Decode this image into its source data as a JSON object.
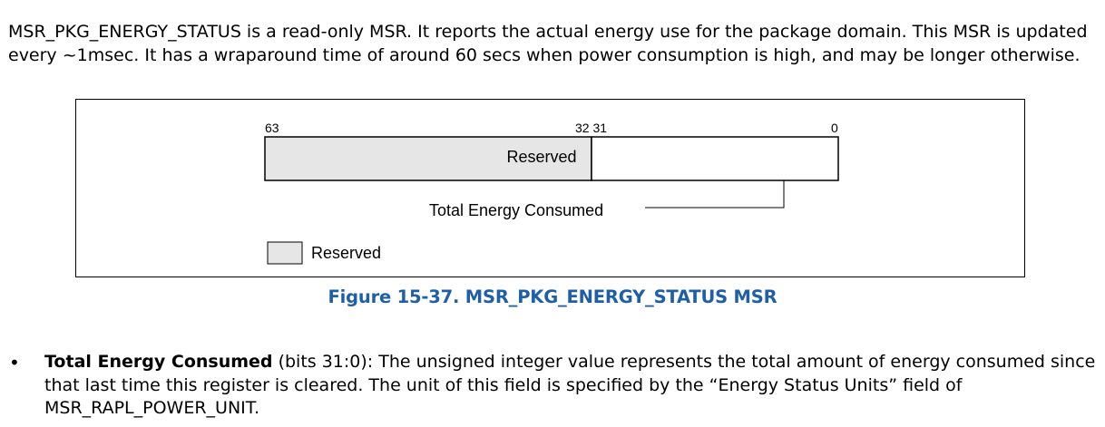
{
  "intro": {
    "text": "MSR_PKG_ENERGY_STATUS is a read-only MSR. It reports the actual energy use for the package domain. This MSR is updated every ~1msec. It has a wraparound time of around 60 secs when power consumption is high, and may be longer otherwise."
  },
  "figure": {
    "bit_labels": {
      "high": "63",
      "mid": "32 31",
      "low": "0"
    },
    "reserved_label": "Reserved",
    "field_label": "Total Energy Consumed",
    "legend_label": "Reserved",
    "caption": "Figure 15-37.  MSR_PKG_ENERGY_STATUS MSR",
    "colors": {
      "reserved_fill": "#e6e6e6",
      "caption": "#1f5fa8"
    }
  },
  "bullet": {
    "mark": "•",
    "term": "Total Energy Consumed",
    "description": " (bits 31:0): The unsigned integer value represents the total amount of energy consumed since that last time this register is cleared. The unit of this field is specified by the “Energy Status Units” field of MSR_RAPL_POWER_UNIT."
  }
}
